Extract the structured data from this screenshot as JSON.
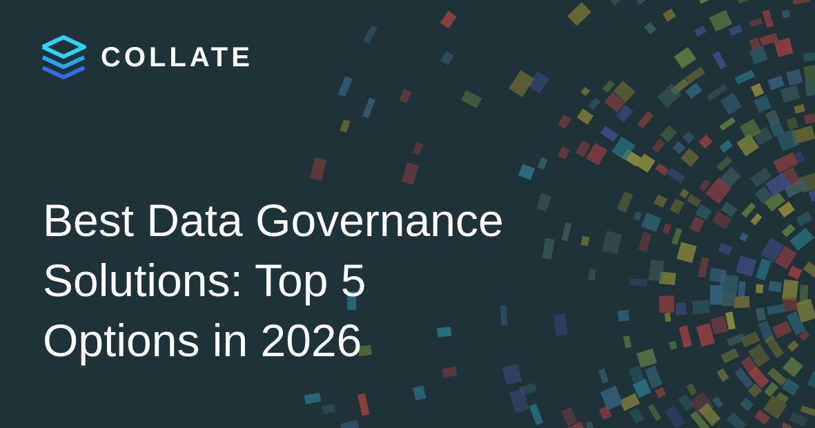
{
  "logo": {
    "text": "COLLATE"
  },
  "title": {
    "lines": [
      "Best Data Governance",
      "Solutions: Top 5",
      "Options in 2026"
    ]
  }
}
